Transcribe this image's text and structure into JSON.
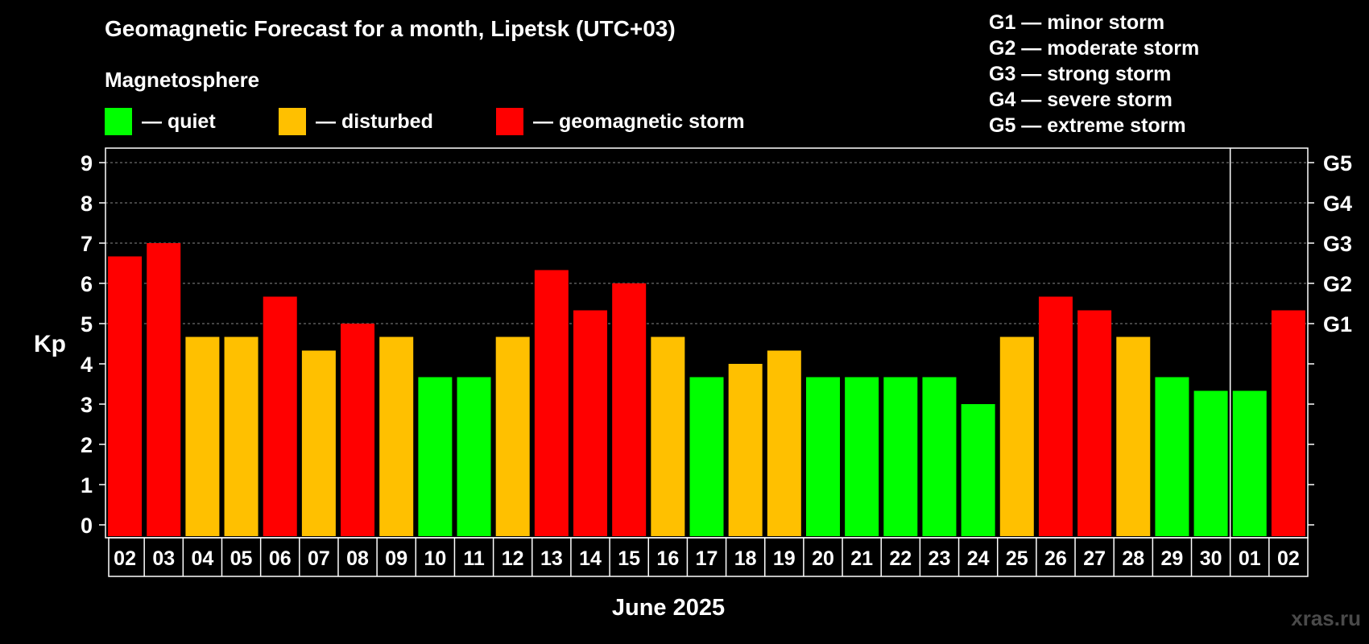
{
  "colors": {
    "quiet": "#00ff00",
    "disturbed": "#ffc000",
    "storm": "#ff0000"
  },
  "legend": {
    "heading": "Magnetosphere",
    "items": [
      {
        "key": "quiet",
        "label": "— quiet",
        "color": "#00ff00"
      },
      {
        "key": "disturbed",
        "label": "— disturbed",
        "color": "#ffc000"
      },
      {
        "key": "storm",
        "label": "— geomagnetic storm",
        "color": "#ff0000"
      }
    ]
  },
  "storm_scale": [
    "G1 — minor storm",
    "G2 — moderate storm",
    "G3 — strong storm",
    "G4 — severe storm",
    "G5 — extreme storm"
  ],
  "watermark": "xras.ru",
  "chart_data": {
    "type": "bar",
    "title": "Geomagnetic Forecast for a month, Lipetsk (UTC+03)",
    "xlabel": "June 2025",
    "ylabel": "Kp",
    "ylim": [
      0,
      9
    ],
    "yticks": [
      "0",
      "1",
      "2",
      "3",
      "4",
      "5",
      "6",
      "7",
      "8",
      "9"
    ],
    "right_axis_labels": [
      {
        "kp": 5,
        "label": "G1"
      },
      {
        "kp": 6,
        "label": "G2"
      },
      {
        "kp": 7,
        "label": "G3"
      },
      {
        "kp": 8,
        "label": "G4"
      },
      {
        "kp": 9,
        "label": "G5"
      }
    ],
    "grid": "dashed horizontal",
    "month_divider_after": "30",
    "categories": [
      "02",
      "03",
      "04",
      "05",
      "06",
      "07",
      "08",
      "09",
      "10",
      "11",
      "12",
      "13",
      "14",
      "15",
      "16",
      "17",
      "18",
      "19",
      "20",
      "21",
      "22",
      "23",
      "24",
      "25",
      "26",
      "27",
      "28",
      "29",
      "30",
      "01",
      "02"
    ],
    "values": [
      6.67,
      7.0,
      4.67,
      4.67,
      5.67,
      4.33,
      5.0,
      4.67,
      3.67,
      3.67,
      4.67,
      6.33,
      5.33,
      6.0,
      4.67,
      3.67,
      4.0,
      4.33,
      3.67,
      3.67,
      3.67,
      3.67,
      3.0,
      4.67,
      5.67,
      5.33,
      4.67,
      3.67,
      3.33,
      3.33,
      5.33
    ],
    "levels": [
      "storm",
      "storm",
      "disturbed",
      "disturbed",
      "storm",
      "disturbed",
      "storm",
      "disturbed",
      "quiet",
      "quiet",
      "disturbed",
      "storm",
      "storm",
      "storm",
      "disturbed",
      "quiet",
      "disturbed",
      "disturbed",
      "quiet",
      "quiet",
      "quiet",
      "quiet",
      "quiet",
      "disturbed",
      "storm",
      "storm",
      "disturbed",
      "quiet",
      "quiet",
      "quiet",
      "storm"
    ]
  }
}
